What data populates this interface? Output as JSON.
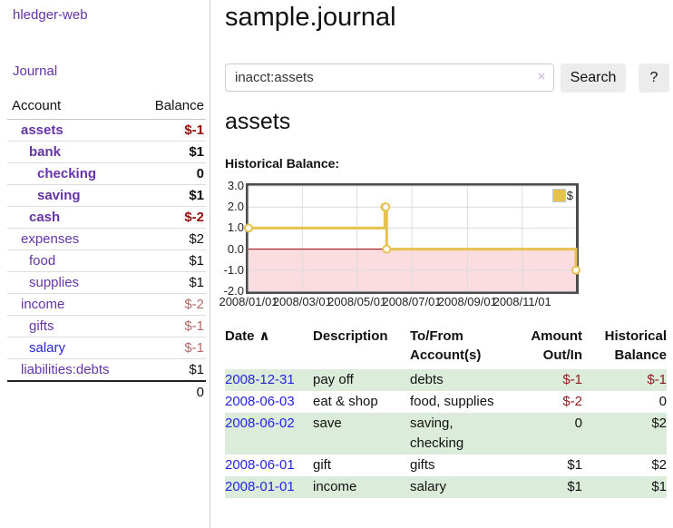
{
  "app": {
    "title": "hledger-web",
    "nav_journal": "Journal"
  },
  "sidebar": {
    "col_account": "Account",
    "col_balance": "Balance",
    "accounts": [
      {
        "name": "assets",
        "balance": "$-1",
        "indent": 1,
        "bold": true,
        "neg": "dark"
      },
      {
        "name": "bank",
        "balance": "$1",
        "indent": 2,
        "bold": true,
        "neg": "none"
      },
      {
        "name": "checking",
        "balance": "0",
        "indent": 3,
        "bold": true,
        "neg": "none"
      },
      {
        "name": "saving",
        "balance": "$1",
        "indent": 3,
        "bold": true,
        "neg": "none"
      },
      {
        "name": "cash",
        "balance": "$-2",
        "indent": 2,
        "bold": true,
        "neg": "dark"
      },
      {
        "name": "expenses",
        "balance": "$2",
        "indent": 1,
        "bold": false,
        "neg": "none"
      },
      {
        "name": "food",
        "balance": "$1",
        "indent": 2,
        "bold": false,
        "neg": "none"
      },
      {
        "name": "supplies",
        "balance": "$1",
        "indent": 2,
        "bold": false,
        "neg": "none"
      },
      {
        "name": "income",
        "balance": "$-2",
        "indent": 1,
        "bold": false,
        "neg": "muted"
      },
      {
        "name": "gifts",
        "balance": "$-1",
        "indent": 2,
        "bold": false,
        "neg": "muted"
      },
      {
        "name": "salary",
        "balance": "$-1",
        "indent": 2,
        "bold": false,
        "neg": "muted",
        "blue": true
      },
      {
        "name": "liabilities:debts",
        "balance": "$1",
        "indent": 1,
        "bold": false,
        "neg": "none"
      }
    ],
    "total": "0"
  },
  "header": {
    "title": "sample.journal"
  },
  "search": {
    "value": "inacct:assets",
    "clear_icon": "×",
    "button_label": "Search",
    "help_label": "?"
  },
  "account_page": {
    "heading": "assets",
    "chart_label": "Historical Balance:"
  },
  "chart_data": {
    "type": "line",
    "step": true,
    "series": [
      {
        "name": "$",
        "color": "#e7c14e",
        "points": [
          [
            "2008-01-01",
            1
          ],
          [
            "2008-06-01",
            2
          ],
          [
            "2008-06-02",
            2
          ],
          [
            "2008-06-03",
            0
          ],
          [
            "2008-12-31",
            -1
          ]
        ]
      }
    ],
    "xlim": [
      "2008-01-01",
      "2008-12-31"
    ],
    "ylim": [
      -2,
      3
    ],
    "x_ticks": [
      {
        "date": "2008-01-01",
        "label": "2008/01/01"
      },
      {
        "date": "2008-03-01",
        "label": "2008/03/01"
      },
      {
        "date": "2008-05-01",
        "label": "2008/05/01"
      },
      {
        "date": "2008-07-01",
        "label": "2008/07/01"
      },
      {
        "date": "2008-09-01",
        "label": "2008/09/01"
      },
      {
        "date": "2008-11-01",
        "label": "2008/11/01"
      }
    ],
    "y_ticks": [
      3.0,
      2.0,
      1.0,
      0.0,
      -1.0,
      -2.0
    ],
    "grid": true,
    "grid_color": "#dcdcdc",
    "negative_fill": "#fbdce0",
    "zero_line_color": "#990000",
    "legend": {
      "label": "$",
      "swatch_color": "#e7c14e",
      "position": "top-right"
    }
  },
  "register": {
    "headers": {
      "date": "Date",
      "description": "Description",
      "accounts": "To/From Account(s)",
      "amount": "Amount Out/In",
      "balance": "Historical Balance"
    },
    "sort_caret": "∧",
    "rows": [
      {
        "date": "2008-12-31",
        "description": "pay off",
        "accounts": "debts",
        "amount": "$-1",
        "amount_neg": true,
        "balance": "$-1",
        "balance_neg": true
      },
      {
        "date": "2008-06-03",
        "description": "eat & shop",
        "accounts": "food, supplies",
        "amount": "$-2",
        "amount_neg": true,
        "balance": "0",
        "balance_neg": false
      },
      {
        "date": "2008-06-02",
        "description": "save",
        "accounts": "saving, checking",
        "amount": "0",
        "amount_neg": false,
        "balance": "$2",
        "balance_neg": false
      },
      {
        "date": "2008-06-01",
        "description": "gift",
        "accounts": "gifts",
        "amount": "$1",
        "amount_neg": false,
        "balance": "$2",
        "balance_neg": false
      },
      {
        "date": "2008-01-01",
        "description": "income",
        "accounts": "salary",
        "amount": "$1",
        "amount_neg": false,
        "balance": "$1",
        "balance_neg": false
      }
    ]
  }
}
